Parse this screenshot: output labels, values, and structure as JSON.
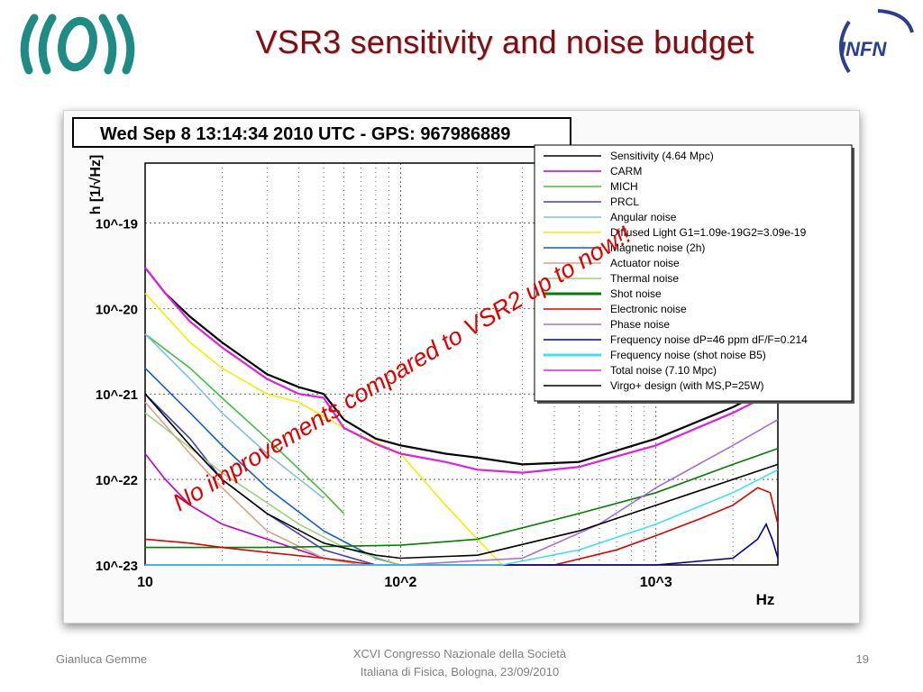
{
  "slide": {
    "title": "VSR3 sensitivity  and noise budget",
    "footer_left": "Gianluca Gemme",
    "footer_mid_line1": "XCVI Congresso Nazionale della Società",
    "footer_mid_line2": "Italiana di Fisica, Bologna, 23/09/2010",
    "page_number": "19",
    "logo_right_text": "INFN",
    "colors": {
      "title": "#7a0f14",
      "annotation": "#e00000",
      "logo_teal": "#1e8c84"
    }
  },
  "chart_data": {
    "type": "line",
    "title": "Wed Sep  8 13:14:34 2010 UTC - GPS: 967986889",
    "xlabel": "Hz",
    "ylabel": "h [1/√Hz]",
    "xscale": "log",
    "yscale": "log",
    "xlim": [
      10,
      3000
    ],
    "ylim": [
      1e-23,
      5e-19
    ],
    "x_ticks": [
      "10",
      "10^2",
      "10^3"
    ],
    "y_ticks": [
      "10^-19",
      "10^-20",
      "10^-21",
      "10^-22",
      "10^-23"
    ],
    "grid": true,
    "legend_position": "top-right",
    "annotation": "No improvements compared to VSR2 up to now!!",
    "series": [
      {
        "name": "Sensitivity (4.64 Mpc)",
        "color": "#000000",
        "x": [
          10,
          12,
          15,
          20,
          30,
          40,
          50,
          60,
          80,
          100,
          150,
          200,
          300,
          500,
          1000,
          2000,
          3000
        ],
        "y": [
          3e-20,
          1.5e-20,
          8e-21,
          4e-21,
          1.7e-21,
          1.2e-21,
          1e-21,
          5e-22,
          3e-22,
          2.5e-22,
          2e-22,
          1.8e-22,
          1.5e-22,
          1.6e-22,
          3e-22,
          7e-22,
          1.3e-21
        ]
      },
      {
        "name": "CARM",
        "color": "#c000c0",
        "x": [
          10,
          12,
          15,
          20,
          30,
          50
        ],
        "y": [
          2e-22,
          1e-22,
          5e-23,
          3e-23,
          2e-23,
          1.2e-23
        ]
      },
      {
        "name": "MICH",
        "color": "#40c040",
        "x": [
          10,
          15,
          20,
          30,
          50,
          60
        ],
        "y": [
          5e-21,
          2e-21,
          9e-22,
          3e-22,
          7e-23,
          4e-23
        ]
      },
      {
        "name": "PRCL",
        "color": "#4040c0",
        "x": [
          10,
          15,
          20,
          30,
          50,
          80
        ],
        "y": [
          1e-21,
          3e-22,
          1e-22,
          4e-23,
          1.5e-23,
          1e-23
        ]
      },
      {
        "name": "Angular noise",
        "color": "#80c0e0",
        "x": [
          10,
          15,
          20,
          30,
          50
        ],
        "y": [
          5e-21,
          1.5e-21,
          6e-22,
          2e-22,
          6e-23
        ]
      },
      {
        "name": "Diffused Light G1=1.09e-19G2=3.09e-19",
        "color": "#f0f000",
        "x": [
          10,
          15,
          20,
          30,
          40,
          60,
          100,
          150,
          200,
          250
        ],
        "y": [
          1.5e-20,
          4e-21,
          2e-21,
          1e-21,
          8e-22,
          4e-22,
          2e-22,
          5e-23,
          2e-23,
          1e-23
        ]
      },
      {
        "name": "Magnetic noise (2h)",
        "color": "#1060c0",
        "x": [
          10,
          15,
          20,
          30,
          50,
          80,
          100
        ],
        "y": [
          2e-21,
          6e-22,
          2.5e-22,
          8e-23,
          2.5e-23,
          1.2e-23,
          1e-23
        ]
      },
      {
        "name": "Actuator noise",
        "color": "#e0a080",
        "x": [
          10,
          15,
          20,
          30,
          50,
          70
        ],
        "y": [
          8e-22,
          2e-22,
          8e-23,
          2.5e-23,
          1.2e-23,
          1e-23
        ]
      },
      {
        "name": "Thermal noise",
        "color": "#a0d080",
        "x": [
          10,
          20,
          40,
          60,
          100
        ],
        "y": [
          6e-22,
          1.2e-22,
          3e-23,
          1.6e-23,
          1e-23
        ]
      },
      {
        "name": "Shot noise",
        "color": "#008000",
        "x": [
          10,
          30,
          100,
          200,
          500,
          1000,
          2000,
          3000
        ],
        "y": [
          1.6e-23,
          1.6e-23,
          1.7e-23,
          2e-23,
          4e-23,
          7e-23,
          1.5e-22,
          2.3e-22
        ]
      },
      {
        "name": "Electronic noise",
        "color": "#e00000",
        "x": [
          10,
          15,
          20,
          30,
          50,
          80,
          200,
          400,
          700,
          1000,
          1500,
          2000,
          2500,
          2800,
          3000
        ],
        "y": [
          2e-23,
          1.8e-23,
          1.6e-23,
          1.4e-23,
          1.2e-23,
          1e-23,
          1e-23,
          1e-23,
          1.5e-23,
          2.2e-23,
          3.5e-23,
          5e-23,
          8e-23,
          7e-23,
          3e-23
        ]
      },
      {
        "name": "Phase noise",
        "color": "#a070e0",
        "x": [
          10,
          30,
          100,
          300,
          600,
          1000,
          2000,
          3000
        ],
        "y": [
          1e-23,
          1e-23,
          1e-23,
          1.2e-23,
          3e-23,
          8e-23,
          2.5e-22,
          5e-22
        ]
      },
      {
        "name": "Frequency noise dP=46 ppm dF/F=0.214",
        "color": "#0000a0",
        "x": [
          10,
          100,
          1000,
          2000,
          2500,
          2700,
          2850,
          3000
        ],
        "y": [
          1e-23,
          1e-23,
          1e-23,
          1.2e-23,
          2e-23,
          3e-23,
          2e-23,
          1.2e-23
        ]
      },
      {
        "name": "Frequency noise (shot noise B5)",
        "color": "#40e0f0",
        "x": [
          10,
          100,
          250,
          500,
          1000,
          2000,
          3000
        ],
        "y": [
          1e-23,
          1e-23,
          1e-23,
          1.5e-23,
          3e-23,
          7e-23,
          1.3e-22
        ]
      },
      {
        "name": "Total noise (7.10 Mpc)",
        "color": "#e020e0",
        "x": [
          10,
          12,
          15,
          20,
          30,
          40,
          50,
          60,
          80,
          100,
          150,
          200,
          300,
          500,
          1000,
          2000,
          3000
        ],
        "y": [
          3e-20,
          1.5e-20,
          7e-21,
          3.5e-21,
          1.5e-21,
          1e-21,
          9e-22,
          4e-22,
          2.6e-22,
          2e-22,
          1.6e-22,
          1.3e-22,
          1.2e-22,
          1.4e-22,
          2.5e-22,
          6e-22,
          1.1e-21
        ]
      },
      {
        "name": "Virgo+ design (with MS,P=25W)",
        "color": "#000000",
        "x": [
          10,
          15,
          20,
          30,
          50,
          80,
          100,
          200,
          500,
          1000,
          2000,
          3000
        ],
        "y": [
          1e-21,
          2.5e-22,
          1e-22,
          4e-23,
          1.8e-23,
          1.3e-23,
          1.2e-23,
          1.3e-23,
          2.5e-23,
          5e-23,
          1e-22,
          1.5e-22
        ]
      }
    ]
  }
}
